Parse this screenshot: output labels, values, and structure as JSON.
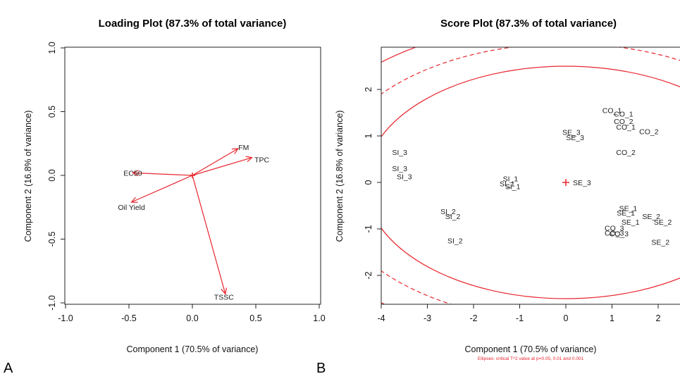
{
  "chart_data": [
    {
      "type": "biplot-loading",
      "title": "Loading Plot (87.3% of total variance)",
      "xlabel": "Component 1 (70.5% of variance)",
      "ylabel": "Component 2 (16.8% of variance)",
      "xlim": [
        -1.0,
        1.0
      ],
      "ylim": [
        -1.0,
        1.0
      ],
      "xticks": [
        "-1.0",
        "-0.5",
        "0.0",
        "0.5",
        "1.0"
      ],
      "yticks": [
        "-1.0",
        "-0.5",
        "0.0",
        "0.5",
        "1.0"
      ],
      "panel_letter": "A",
      "color": "#e8262e",
      "vectors": [
        {
          "label": "EC50",
          "x": -0.47,
          "y": 0.02
        },
        {
          "label": "FM",
          "x": 0.36,
          "y": 0.21
        },
        {
          "label": "TPC",
          "x": 0.47,
          "y": 0.14
        },
        {
          "label": "Oil Yield",
          "x": -0.48,
          "y": -0.21
        },
        {
          "label": "TSSC",
          "x": 0.26,
          "y": -0.93
        }
      ]
    },
    {
      "type": "scatter",
      "title": "Score Plot (87.3% of total variance)",
      "xlabel": "Component 1 (70.5% of variance)",
      "ylabel": "Component 2 (16.8% of variance)",
      "xlim": [
        -4,
        2.5
      ],
      "ylim": [
        -2.65,
        2.95
      ],
      "xticks": [
        "-4",
        "-3",
        "-2",
        "-1",
        "0",
        "1",
        "2"
      ],
      "yticks": [
        "-2",
        "-1",
        "0",
        "1",
        "2"
      ],
      "panel_letter": "B",
      "note": "Ellipses: critical T^2 value at p=0.05, 0.01 and 0.001",
      "color": "#e8262e",
      "center_label": "SE_3",
      "points": [
        {
          "label": "SI_3",
          "x": -3.6,
          "y": 0.65
        },
        {
          "label": "SI_3",
          "x": -3.6,
          "y": 0.3
        },
        {
          "label": "SI_3",
          "x": -3.5,
          "y": 0.13
        },
        {
          "label": "SI_1",
          "x": -1.2,
          "y": 0.08
        },
        {
          "label": "SI_1",
          "x": -1.27,
          "y": -0.02
        },
        {
          "label": "SI_1",
          "x": -1.15,
          "y": -0.08
        },
        {
          "label": "SI_2",
          "x": -2.55,
          "y": -0.62
        },
        {
          "label": "SI_2",
          "x": -2.45,
          "y": -0.73
        },
        {
          "label": "SI_2",
          "x": -2.4,
          "y": -1.25
        },
        {
          "label": "SE_3",
          "x": 0.12,
          "y": 1.08
        },
        {
          "label": "SE_3",
          "x": 0.2,
          "y": 0.97
        },
        {
          "label": "CO_1",
          "x": 1.0,
          "y": 1.55
        },
        {
          "label": "CO_1",
          "x": 1.25,
          "y": 1.48
        },
        {
          "label": "CO_2",
          "x": 1.25,
          "y": 1.32
        },
        {
          "label": "CO_1",
          "x": 1.3,
          "y": 1.2
        },
        {
          "label": "CO_2",
          "x": 1.8,
          "y": 1.1
        },
        {
          "label": "CO_2",
          "x": 1.3,
          "y": 0.65
        },
        {
          "label": "SE_1",
          "x": 1.35,
          "y": -0.55
        },
        {
          "label": "SE_1",
          "x": 1.3,
          "y": -0.65
        },
        {
          "label": "SE_2",
          "x": 1.85,
          "y": -0.73
        },
        {
          "label": "SE_1",
          "x": 1.4,
          "y": -0.85
        },
        {
          "label": "SE_2",
          "x": 2.1,
          "y": -0.85
        },
        {
          "label": "CO_3",
          "x": 1.05,
          "y": -0.98
        },
        {
          "label": "CO_3",
          "x": 1.05,
          "y": -1.08
        },
        {
          "label": "CO_3",
          "x": 1.15,
          "y": -1.1
        },
        {
          "label": "SE_2",
          "x": 2.05,
          "y": -1.28
        }
      ]
    }
  ]
}
